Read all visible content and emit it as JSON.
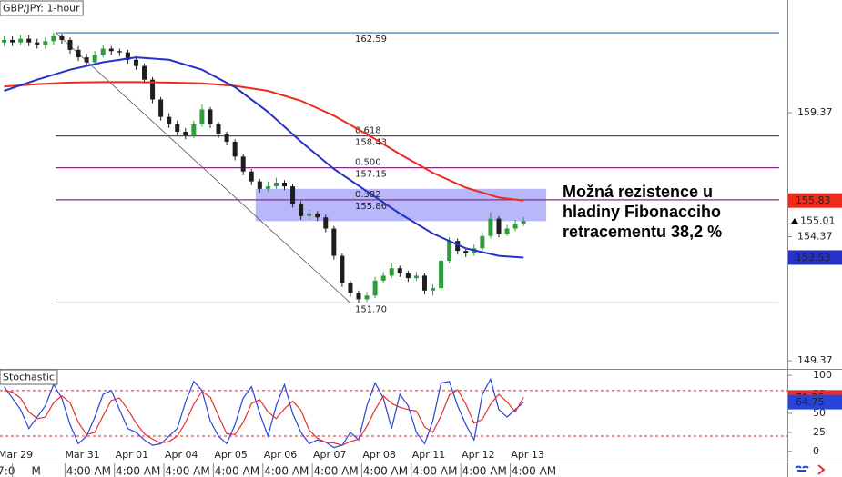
{
  "chart_data": [
    {
      "type": "candlestick",
      "title": "GBP/JPY: 1-hour",
      "x": [
        2,
        6,
        10,
        14,
        18,
        22,
        26,
        30,
        34,
        38,
        42,
        46,
        50,
        54,
        58,
        62,
        66,
        70,
        74,
        78,
        82,
        86,
        90,
        94,
        98,
        102,
        106,
        110,
        114,
        118,
        122,
        126,
        130,
        134,
        138,
        142,
        146,
        150,
        154,
        158,
        162,
        166,
        170,
        174,
        178,
        182,
        186,
        190,
        194,
        198,
        202,
        206,
        210,
        214,
        218,
        222,
        226,
        230,
        234,
        238,
        242,
        246,
        250,
        254
      ],
      "open": [
        162.2,
        162.3,
        162.2,
        162.35,
        162.2,
        162.1,
        162.25,
        162.45,
        162.3,
        161.9,
        161.6,
        161.4,
        161.7,
        161.95,
        161.85,
        161.8,
        161.5,
        161.25,
        160.7,
        159.9,
        159.2,
        158.9,
        158.6,
        158.45,
        158.9,
        159.5,
        158.9,
        158.5,
        158.2,
        157.6,
        157.0,
        156.6,
        156.3,
        156.4,
        156.55,
        156.4,
        155.7,
        155.2,
        155.3,
        155.15,
        154.7,
        153.6,
        152.5,
        152.1,
        151.85,
        152.0,
        152.6,
        152.8,
        153.1,
        152.9,
        152.7,
        152.8,
        152.2,
        152.3,
        153.4,
        154.2,
        153.8,
        153.7,
        153.9,
        154.4,
        155.1,
        154.5,
        154.7,
        154.9
      ],
      "high": [
        162.45,
        162.45,
        162.5,
        162.5,
        162.35,
        162.4,
        162.6,
        162.55,
        162.4,
        162.05,
        161.75,
        161.85,
        162.1,
        162.05,
        161.95,
        161.9,
        161.65,
        161.35,
        160.8,
        160.0,
        159.35,
        159.05,
        158.75,
        159.05,
        159.7,
        159.6,
        159.0,
        158.6,
        158.3,
        157.7,
        157.1,
        156.7,
        156.6,
        156.75,
        156.65,
        156.5,
        155.8,
        155.45,
        155.4,
        155.25,
        154.8,
        153.7,
        152.6,
        152.2,
        152.15,
        152.75,
        152.95,
        153.3,
        153.2,
        153.0,
        152.95,
        152.9,
        152.45,
        153.55,
        154.35,
        154.3,
        153.9,
        154.05,
        154.55,
        155.35,
        155.2,
        154.85,
        155.05,
        155.15
      ],
      "low": [
        162.05,
        162.05,
        162.1,
        162.05,
        161.95,
        161.95,
        162.1,
        162.15,
        161.75,
        161.45,
        161.25,
        161.3,
        161.6,
        161.7,
        161.65,
        161.35,
        161.1,
        160.55,
        159.75,
        159.05,
        158.75,
        158.45,
        158.3,
        158.35,
        158.8,
        158.75,
        158.35,
        158.05,
        157.45,
        156.85,
        156.45,
        156.15,
        156.2,
        156.3,
        156.25,
        155.55,
        155.05,
        155.1,
        155.0,
        154.55,
        153.45,
        152.35,
        151.95,
        151.7,
        151.75,
        151.9,
        152.5,
        152.7,
        152.75,
        152.55,
        152.6,
        152.05,
        152.0,
        152.2,
        153.3,
        153.65,
        153.55,
        153.6,
        153.8,
        154.3,
        154.35,
        154.4,
        154.6,
        154.8
      ],
      "close": [
        162.3,
        162.2,
        162.35,
        162.2,
        162.1,
        162.25,
        162.45,
        162.3,
        161.9,
        161.6,
        161.4,
        161.7,
        161.95,
        161.85,
        161.8,
        161.5,
        161.25,
        160.7,
        159.9,
        159.2,
        158.9,
        158.6,
        158.45,
        158.9,
        159.5,
        158.9,
        158.5,
        158.2,
        157.6,
        157.0,
        156.6,
        156.3,
        156.4,
        156.55,
        156.4,
        155.7,
        155.2,
        155.3,
        155.15,
        154.7,
        153.6,
        152.5,
        152.1,
        151.85,
        152.0,
        152.6,
        152.8,
        153.1,
        152.9,
        152.7,
        152.8,
        152.2,
        152.3,
        153.4,
        154.2,
        153.8,
        153.7,
        153.9,
        154.4,
        155.1,
        154.5,
        154.7,
        154.9,
        155.01
      ],
      "up_color": "#2f9e3a",
      "down_color": "#1e1e1e",
      "lines": [
        {
          "color": "#ee2b1b",
          "x": [
            2,
            18,
            34,
            50,
            66,
            82,
            98,
            114,
            130,
            146,
            162,
            178,
            194,
            210,
            226,
            242,
            254
          ],
          "values": [
            160.42,
            160.52,
            160.58,
            160.6,
            160.6,
            160.58,
            160.55,
            160.45,
            160.25,
            159.85,
            159.25,
            158.5,
            157.7,
            156.95,
            156.35,
            155.95,
            155.83
          ]
        },
        {
          "color": "#2432c8",
          "x": [
            2,
            18,
            34,
            50,
            66,
            82,
            98,
            114,
            130,
            146,
            162,
            178,
            194,
            210,
            226,
            242,
            254
          ],
          "values": [
            160.25,
            160.7,
            161.1,
            161.4,
            161.6,
            161.5,
            161.1,
            160.4,
            159.4,
            158.2,
            157.1,
            156.2,
            155.3,
            154.5,
            153.9,
            153.6,
            153.53
          ]
        }
      ],
      "fib": {
        "x": [
          27,
          378
        ],
        "levels": [
          {
            "price": 162.59,
            "color": "#2e6bb8"
          },
          {
            "ratio": "0.618",
            "price": 158.43,
            "color": "#8b2a8b"
          },
          {
            "ratio": "0.500",
            "price": 157.15,
            "color": "#8b2a8b"
          },
          {
            "ratio": "0.382",
            "price": 155.86,
            "color": "#8b2a8b"
          },
          {
            "price": 151.7,
            "label": "151.70",
            "color": "#2e6bb8"
          }
        ]
      },
      "trendline": {
        "x": [
          27,
          170
        ],
        "values": [
          162.59,
          151.7
        ],
        "color": "#555555"
      },
      "zone": {
        "x": [
          124,
          265
        ],
        "values": [
          155.0,
          156.3
        ],
        "color": "#7b7bf5"
      },
      "annotation": [
        "Možná rezistence u",
        "hladiny Fibonacciho",
        "retracementu 38,2 %"
      ],
      "xlim": [
        0,
        382
      ],
      "ylim": [
        149.08,
        163.91
      ],
      "yticks": [
        159.37,
        154.37,
        149.37
      ]
    },
    {
      "type": "line",
      "title": "Stochastic",
      "x": [
        2,
        6,
        10,
        14,
        18,
        22,
        26,
        30,
        34,
        38,
        42,
        46,
        50,
        54,
        58,
        62,
        66,
        70,
        74,
        78,
        82,
        86,
        90,
        94,
        98,
        102,
        106,
        110,
        114,
        118,
        122,
        126,
        130,
        134,
        138,
        142,
        146,
        150,
        154,
        158,
        162,
        166,
        170,
        174,
        178,
        182,
        186,
        190,
        194,
        198,
        202,
        206,
        210,
        214,
        218,
        222,
        226,
        230,
        234,
        238,
        242,
        246,
        250,
        254
      ],
      "series": [
        {
          "color": "#2745d8",
          "values": [
            85,
            70,
            55,
            30,
            45,
            60,
            88,
            70,
            35,
            10,
            20,
            45,
            75,
            80,
            55,
            30,
            25,
            15,
            8,
            10,
            20,
            30,
            65,
            92,
            80,
            40,
            20,
            10,
            35,
            70,
            85,
            50,
            20,
            60,
            88,
            50,
            25,
            10,
            15,
            12,
            5,
            8,
            25,
            15,
            60,
            90,
            70,
            30,
            75,
            60,
            25,
            10,
            40,
            90,
            92,
            60,
            35,
            15,
            75,
            95,
            55,
            45,
            55,
            64.75
          ]
        },
        {
          "color": "#e53030",
          "values": [
            80,
            78,
            70,
            52,
            43,
            45,
            64,
            73,
            64,
            38,
            22,
            25,
            47,
            67,
            70,
            55,
            37,
            23,
            16,
            11,
            13,
            20,
            38,
            62,
            79,
            71,
            47,
            23,
            22,
            38,
            63,
            68,
            52,
            43,
            56,
            66,
            54,
            28,
            17,
            12,
            11,
            8,
            13,
            16,
            33,
            55,
            73,
            63,
            58,
            55,
            53,
            32,
            25,
            47,
            74,
            81,
            62,
            37,
            42,
            62,
            75,
            65,
            52,
            71.06
          ]
        }
      ],
      "levels": [
        80,
        20
      ],
      "xlim": [
        0,
        382
      ],
      "ylim": [
        -12.2,
        107.3
      ],
      "yticks": [
        100,
        75,
        50,
        25,
        0
      ],
      "xticks": [
        {
          "value": 7.5,
          "label": "Mar 29"
        },
        {
          "value": 40,
          "label": "Mar 31"
        },
        {
          "value": 64,
          "label": "Apr 01"
        },
        {
          "value": 88,
          "label": "Apr 04"
        },
        {
          "value": 112,
          "label": "Apr 05"
        },
        {
          "value": 136,
          "label": "Apr 06"
        },
        {
          "value": 160,
          "label": "Apr 07"
        },
        {
          "value": 184,
          "label": "Apr 08"
        },
        {
          "value": 208,
          "label": "Apr 11"
        },
        {
          "value": 232,
          "label": "Apr 12"
        },
        {
          "value": 256,
          "label": "Apr 13"
        }
      ],
      "xticks_time": [
        {
          "value": 3,
          "label": "7:0"
        },
        {
          "value": 17.5,
          "label": "M"
        },
        {
          "value": 43,
          "label": "4:00 AM"
        },
        {
          "value": 67,
          "label": "4:00 AM"
        },
        {
          "value": 91,
          "label": "4:00 AM"
        },
        {
          "value": 115,
          "label": "4:00 AM"
        },
        {
          "value": 139,
          "label": "4:00 AM"
        },
        {
          "value": 163,
          "label": "4:00 AM"
        },
        {
          "value": 187,
          "label": "4:00 AM"
        },
        {
          "value": 211,
          "label": "4:00 AM"
        },
        {
          "value": 235,
          "label": "4:00 AM"
        },
        {
          "value": 259,
          "label": "4:00 AM"
        }
      ]
    }
  ]
}
